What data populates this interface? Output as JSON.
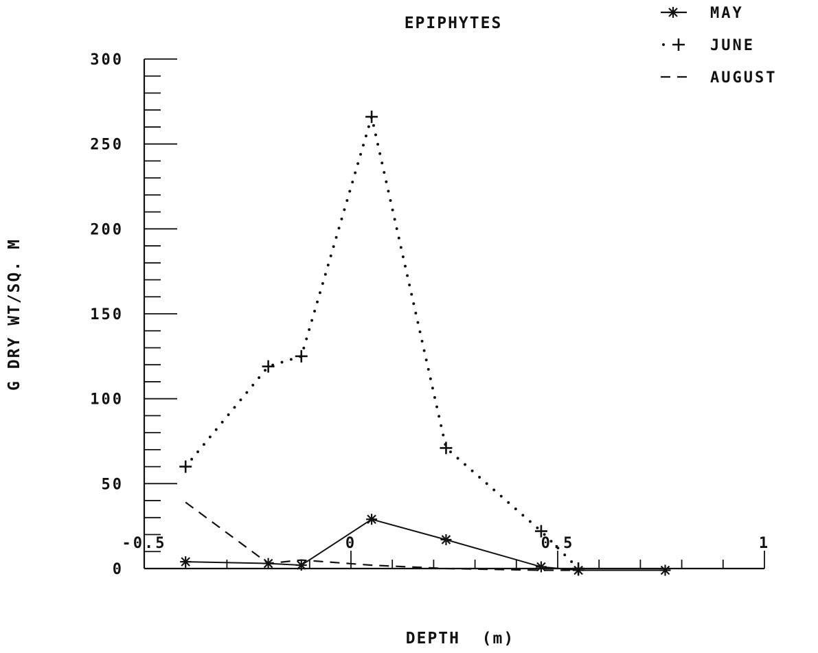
{
  "chart_data": {
    "type": "line",
    "title": "EPIPHYTES",
    "xlabel": "DEPTH  (m)",
    "ylabel": "G DRY WT/SQ. M",
    "xlim": [
      -0.5,
      1
    ],
    "ylim": [
      0,
      300
    ],
    "x_tick_labels": [
      "-0.5",
      "0",
      "0.5",
      "1"
    ],
    "y_tick_labels": [
      "0",
      "50",
      "100",
      "150",
      "200",
      "250",
      "300"
    ],
    "legend_position": "top-right",
    "grid": false,
    "series": [
      {
        "name": "MAY",
        "line_style": "solid",
        "marker": "star",
        "x": [
          -0.4,
          -0.2,
          -0.12,
          0.05,
          0.23,
          0.46,
          0.55,
          0.76
        ],
        "y": [
          4,
          3,
          2,
          29,
          17,
          1,
          -1,
          -1
        ]
      },
      {
        "name": "JUNE",
        "line_style": "dotted",
        "marker": "plus",
        "x": [
          -0.4,
          -0.2,
          -0.12,
          0.05,
          0.23,
          0.46,
          0.55
        ],
        "y": [
          60,
          119,
          125,
          266,
          71,
          22,
          0
        ]
      },
      {
        "name": "AUGUST",
        "line_style": "dashed",
        "marker": "none",
        "x": [
          -0.4,
          -0.2,
          -0.12,
          0.05,
          0.23,
          0.46,
          0.55
        ],
        "y": [
          39,
          3,
          5,
          2,
          0,
          -1,
          -1
        ]
      }
    ]
  }
}
